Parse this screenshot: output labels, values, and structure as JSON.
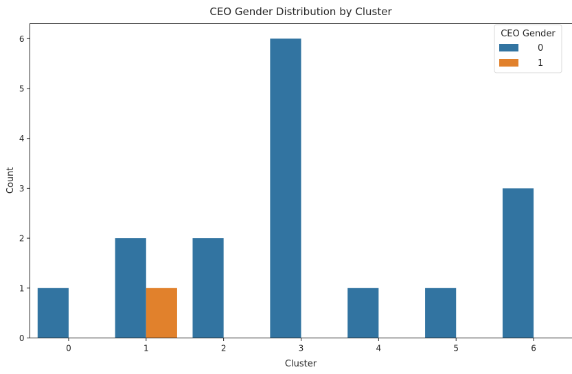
{
  "chart_data": {
    "type": "bar",
    "title": "CEO Gender Distribution by Cluster",
    "xlabel": "Cluster",
    "ylabel": "Count",
    "categories": [
      "0",
      "1",
      "2",
      "3",
      "4",
      "5",
      "6"
    ],
    "series": [
      {
        "name": "0",
        "values": [
          1,
          2,
          2,
          6,
          1,
          1,
          3
        ],
        "color": "#3274a1"
      },
      {
        "name": "1",
        "values": [
          0,
          1,
          0,
          0,
          0,
          0,
          0
        ],
        "color": "#e1812c"
      }
    ],
    "ylim": [
      0,
      6.3
    ],
    "yticks": [
      0,
      1,
      2,
      3,
      4,
      5,
      6
    ],
    "grid": false,
    "legend": {
      "title": "CEO Gender",
      "placement": "top-right"
    }
  }
}
